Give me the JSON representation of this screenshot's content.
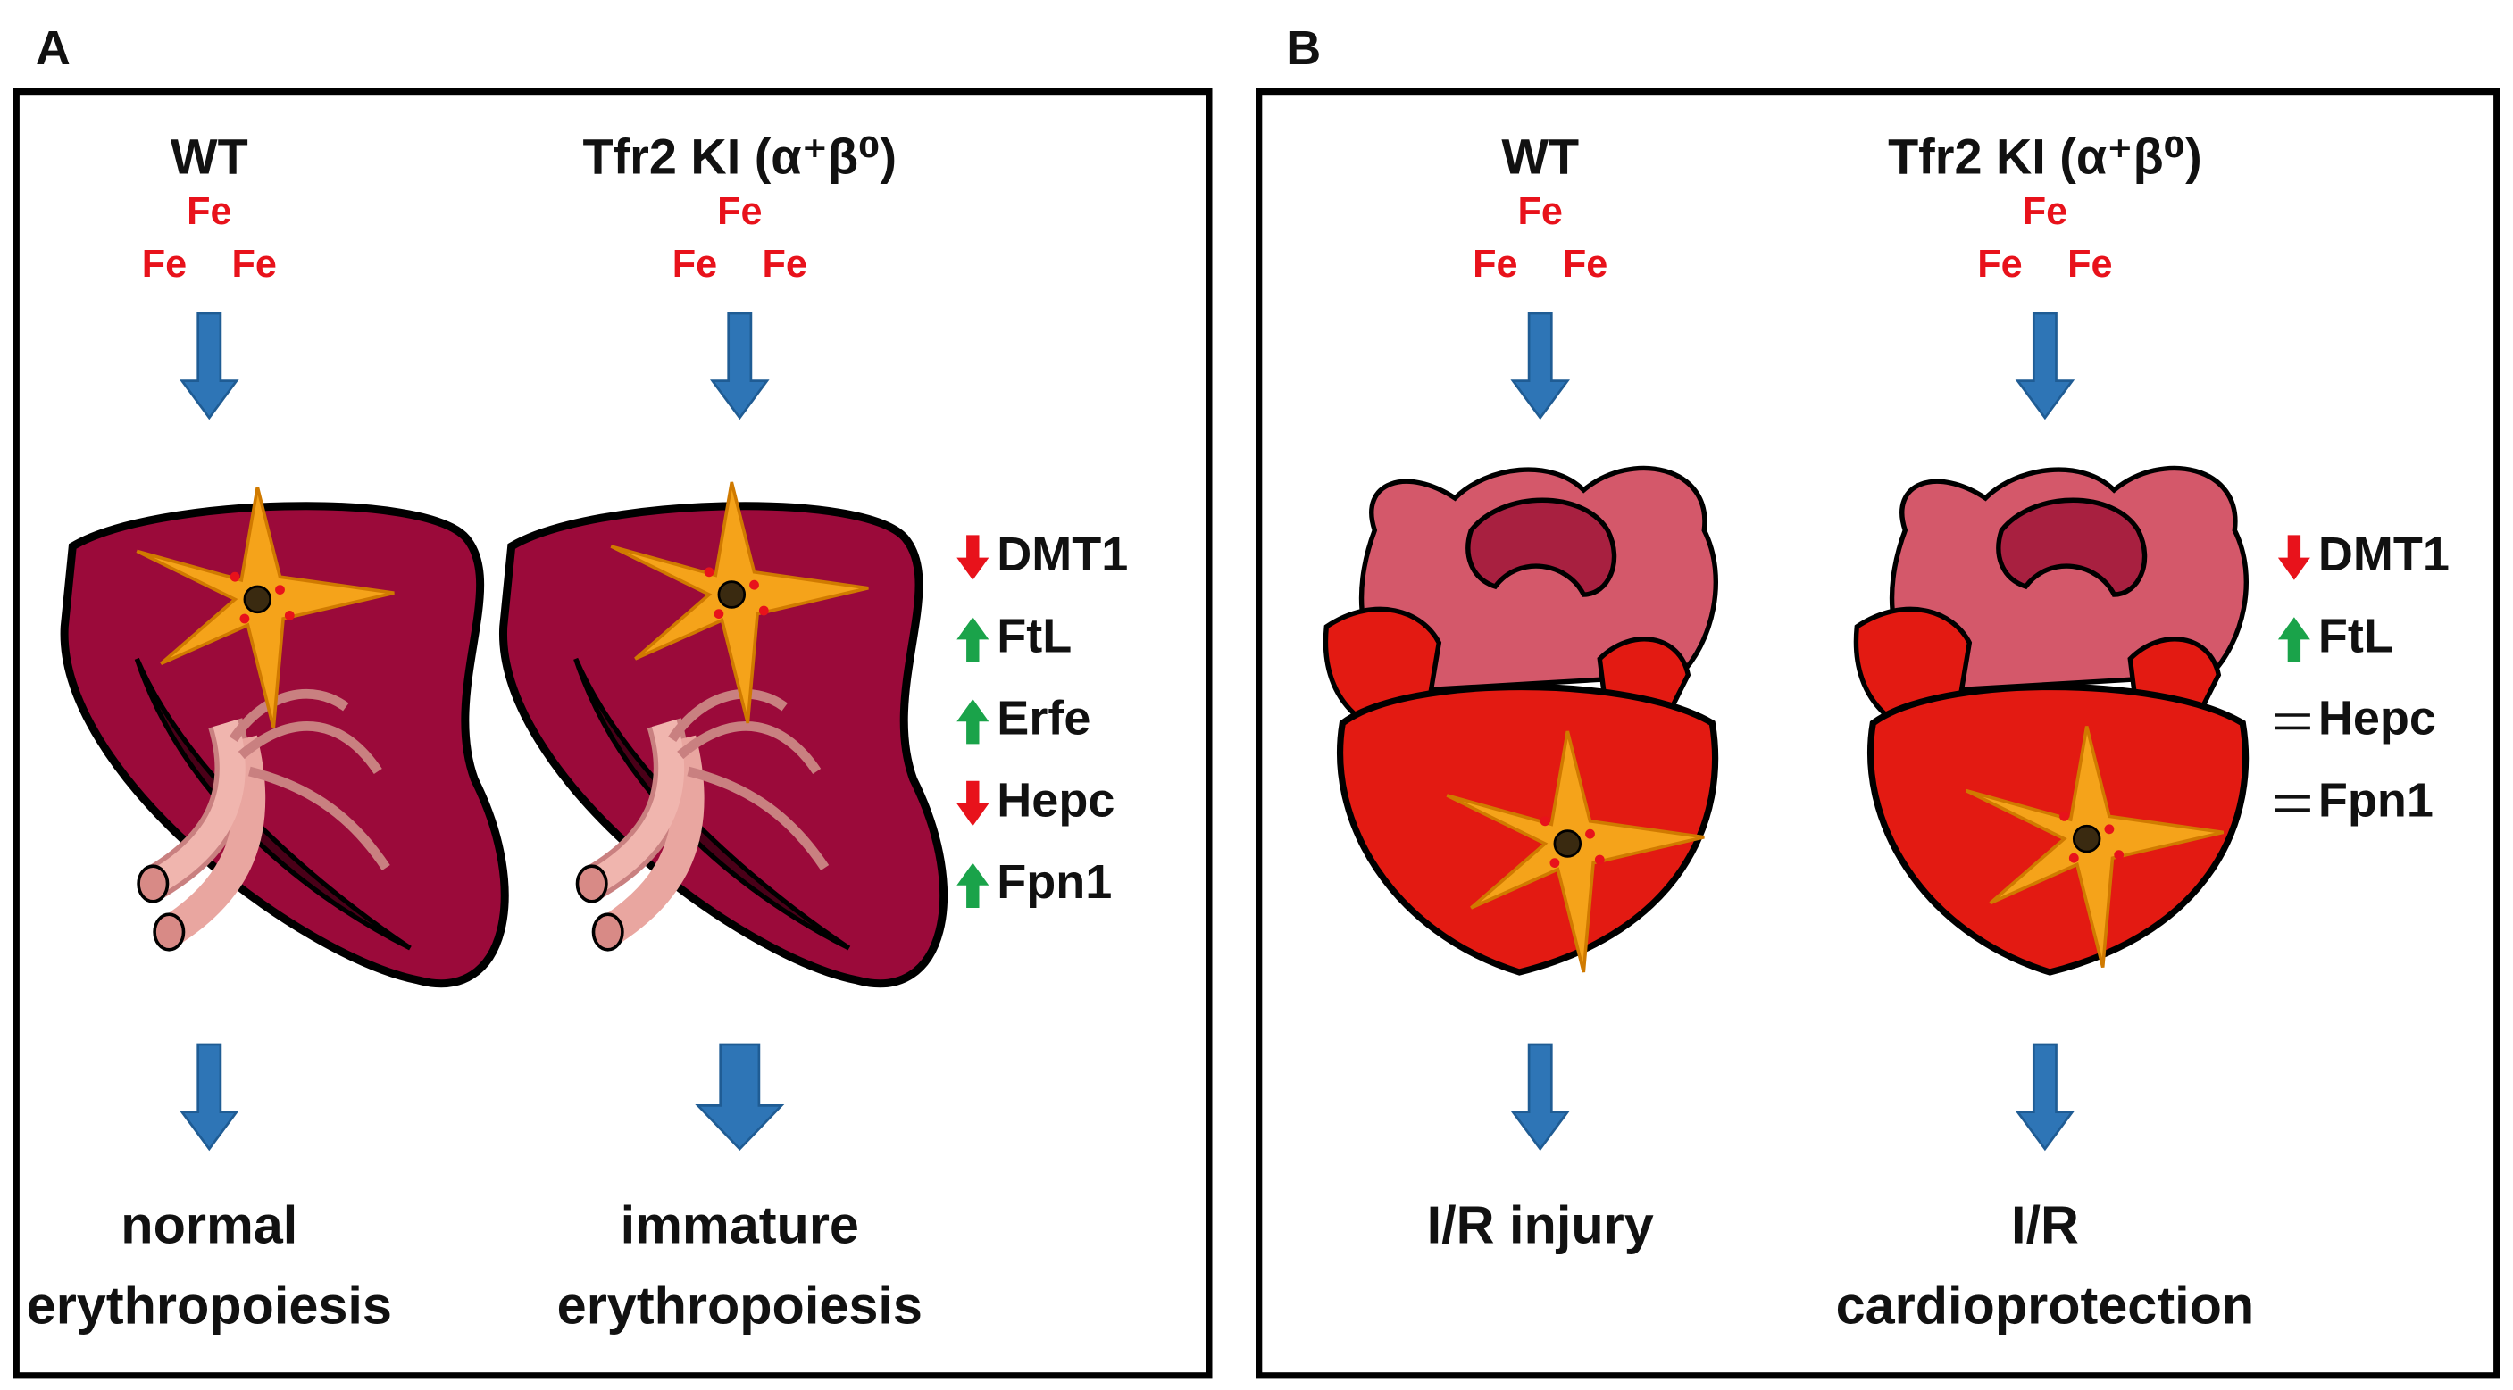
{
  "panels": [
    {
      "label": "A",
      "columns": [
        {
          "title": "WT",
          "fe": [
            "Fe",
            "Fe",
            "Fe"
          ],
          "outcome": [
            "normal",
            "erythropoiesis"
          ]
        },
        {
          "title": "Tfr2 KI (α⁺β⁰)",
          "fe": [
            "Fe",
            "Fe",
            "Fe"
          ],
          "outcome": [
            "immature",
            "erythropoiesis"
          ]
        }
      ],
      "markers": [
        {
          "change": "down",
          "text": "DMT1"
        },
        {
          "change": "up",
          "text": "FtL"
        },
        {
          "change": "up",
          "text": "Erfe"
        },
        {
          "change": "down",
          "text": "Hepc"
        },
        {
          "change": "up",
          "text": "Fpn1"
        }
      ]
    },
    {
      "label": "B",
      "columns": [
        {
          "title": "WT",
          "fe": [
            "Fe",
            "Fe",
            "Fe"
          ],
          "outcome": [
            "I/R injury"
          ]
        },
        {
          "title": "Tfr2 KI (α⁺β⁰)",
          "fe": [
            "Fe",
            "Fe",
            "Fe"
          ],
          "outcome": [
            "I/R",
            "cardioprotection"
          ]
        }
      ],
      "markers": [
        {
          "change": "down",
          "text": "DMT1"
        },
        {
          "change": "up",
          "text": "FtL"
        },
        {
          "change": "unchanged",
          "text": "Hepc"
        },
        {
          "change": "unchanged",
          "text": "Fpn1"
        }
      ]
    }
  ]
}
